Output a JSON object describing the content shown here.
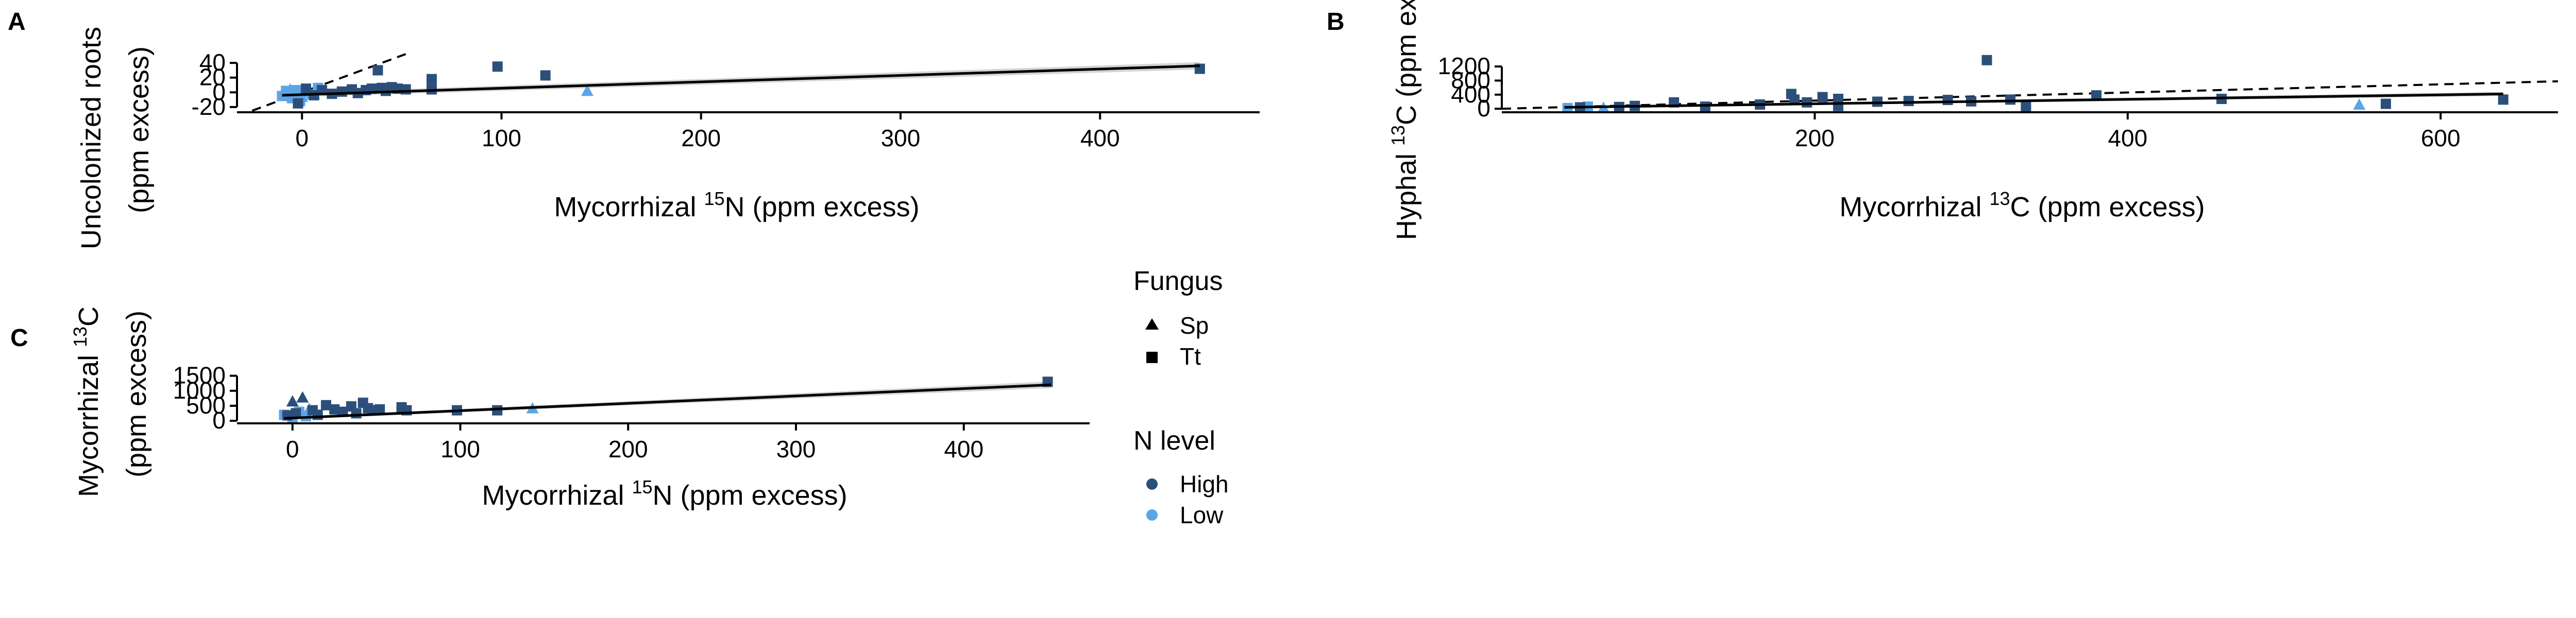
{
  "colors": {
    "high": "#2b4f7a",
    "low": "#5aa5e6",
    "band": "#bdbdbd"
  },
  "legend": {
    "fungus_title": "Fungus",
    "fungus_items": [
      {
        "label": "Sp",
        "shape": "triangle"
      },
      {
        "label": "Tt",
        "shape": "square"
      }
    ],
    "n_title": "N level",
    "n_items": [
      {
        "label": "High",
        "color": "#2b4f7a"
      },
      {
        "label": "Low",
        "color": "#5aa5e6"
      }
    ]
  },
  "chart_data": [
    {
      "panel": "A",
      "type": "scatter",
      "xlabel_main": "Mycorrhizal ",
      "xlabel_sup": "15",
      "xlabel_rest": "N (ppm excess)",
      "ylabel_line1": "Uncolonized roots",
      "ylabel_line1_sup": "",
      "ylabel_line1_rest": "",
      "ylabel_line2": "(ppm excess)",
      "xlim": [
        -30,
        480
      ],
      "ylim": [
        -25,
        45
      ],
      "xticks": [
        "0",
        "100",
        "200",
        "300",
        "400"
      ],
      "xtick_values": [
        0,
        100,
        200,
        300,
        400
      ],
      "yticks": [
        "-20",
        "0",
        "20",
        "40"
      ],
      "ytick_values": [
        -20,
        0,
        20,
        40
      ],
      "fit": {
        "x": [
          -10,
          450
        ],
        "y": [
          -4,
          36
        ],
        "band": [
          3,
          5
        ]
      },
      "ref_line": {
        "x": [
          -25,
          52
        ],
        "y": [
          -25,
          52
        ]
      },
      "points": [
        {
          "x": -10,
          "y": -5,
          "f": "Tt",
          "n": "low"
        },
        {
          "x": -8,
          "y": 2,
          "f": "Tt",
          "n": "low"
        },
        {
          "x": -5,
          "y": -8,
          "f": "Tt",
          "n": "low"
        },
        {
          "x": -3,
          "y": 3,
          "f": "Tt",
          "n": "low"
        },
        {
          "x": -1,
          "y": -12,
          "f": "Tt",
          "n": "low"
        },
        {
          "x": 2,
          "y": 0,
          "f": "Tt",
          "n": "low"
        },
        {
          "x": 5,
          "y": -3,
          "f": "Tt",
          "n": "low"
        },
        {
          "x": 8,
          "y": 6,
          "f": "Tt",
          "n": "low"
        },
        {
          "x": -6,
          "y": 4,
          "f": "Sp",
          "n": "low"
        },
        {
          "x": 0,
          "y": -6,
          "f": "Sp",
          "n": "low"
        },
        {
          "x": 3,
          "y": 2,
          "f": "Sp",
          "n": "low"
        },
        {
          "x": 6,
          "y": -2,
          "f": "Sp",
          "n": "low"
        },
        {
          "x": 143,
          "y": 2,
          "f": "Sp",
          "n": "low"
        },
        {
          "x": -2,
          "y": -15,
          "f": "Tt",
          "n": "high"
        },
        {
          "x": 2,
          "y": 5,
          "f": "Tt",
          "n": "high"
        },
        {
          "x": 6,
          "y": -4,
          "f": "Tt",
          "n": "high"
        },
        {
          "x": 10,
          "y": 3,
          "f": "Tt",
          "n": "high"
        },
        {
          "x": 15,
          "y": -2,
          "f": "Tt",
          "n": "high"
        },
        {
          "x": 20,
          "y": 1,
          "f": "Tt",
          "n": "high"
        },
        {
          "x": 25,
          "y": 4,
          "f": "Tt",
          "n": "high"
        },
        {
          "x": 28,
          "y": -1,
          "f": "Tt",
          "n": "high"
        },
        {
          "x": 32,
          "y": 3,
          "f": "Tt",
          "n": "high"
        },
        {
          "x": 35,
          "y": 5,
          "f": "Tt",
          "n": "high"
        },
        {
          "x": 38,
          "y": 30,
          "f": "Tt",
          "n": "high"
        },
        {
          "x": 40,
          "y": 6,
          "f": "Tt",
          "n": "high"
        },
        {
          "x": 42,
          "y": 2,
          "f": "Tt",
          "n": "high"
        },
        {
          "x": 45,
          "y": 7,
          "f": "Tt",
          "n": "high"
        },
        {
          "x": 48,
          "y": 5,
          "f": "Tt",
          "n": "high"
        },
        {
          "x": 52,
          "y": 4,
          "f": "Tt",
          "n": "high"
        },
        {
          "x": 65,
          "y": 18,
          "f": "Tt",
          "n": "high"
        },
        {
          "x": 65,
          "y": 4,
          "f": "Tt",
          "n": "high"
        },
        {
          "x": 98,
          "y": 35,
          "f": "Tt",
          "n": "high"
        },
        {
          "x": 122,
          "y": 23,
          "f": "Tt",
          "n": "high"
        },
        {
          "x": 450,
          "y": 32,
          "f": "Tt",
          "n": "high"
        }
      ]
    },
    {
      "panel": "B",
      "type": "scatter",
      "xlabel_main": "Mycorrhizal ",
      "xlabel_sup": "13",
      "xlabel_rest": "C (ppm excess)",
      "ylabel_line1": "Hyphal ",
      "ylabel_line1_sup": "13",
      "ylabel_line1_rest": "C (ppm ex",
      "ylabel_line2": "",
      "xlim": [
        0,
        675
      ],
      "ylim": [
        -100,
        1450
      ],
      "xticks": [
        "200",
        "400",
        "600"
      ],
      "xtick_values": [
        200,
        400,
        600
      ],
      "yticks": [
        "0",
        "400",
        "800",
        "1200"
      ],
      "ytick_values": [
        0,
        400,
        800,
        1200
      ],
      "fit": {
        "x": [
          40,
          640
        ],
        "y": [
          40,
          420
        ],
        "band": [
          25,
          60
        ]
      },
      "ref_line": {
        "x": [
          0,
          675
        ],
        "y": [
          0,
          780
        ]
      },
      "points": [
        {
          "x": 42,
          "y": 20,
          "f": "Tt",
          "n": "low"
        },
        {
          "x": 55,
          "y": 60,
          "f": "Tt",
          "n": "low"
        },
        {
          "x": 65,
          "y": 30,
          "f": "Sp",
          "n": "low"
        },
        {
          "x": 548,
          "y": 120,
          "f": "Sp",
          "n": "low"
        },
        {
          "x": 50,
          "y": 40,
          "f": "Tt",
          "n": "high"
        },
        {
          "x": 75,
          "y": 50,
          "f": "Tt",
          "n": "high"
        },
        {
          "x": 85,
          "y": 80,
          "f": "Tt",
          "n": "high"
        },
        {
          "x": 110,
          "y": 180,
          "f": "Tt",
          "n": "high"
        },
        {
          "x": 130,
          "y": 60,
          "f": "Tt",
          "n": "high"
        },
        {
          "x": 165,
          "y": 120,
          "f": "Tt",
          "n": "high"
        },
        {
          "x": 185,
          "y": 420,
          "f": "Tt",
          "n": "high"
        },
        {
          "x": 187,
          "y": 260,
          "f": "Tt",
          "n": "high"
        },
        {
          "x": 195,
          "y": 180,
          "f": "Tt",
          "n": "high"
        },
        {
          "x": 205,
          "y": 330,
          "f": "Tt",
          "n": "high"
        },
        {
          "x": 215,
          "y": 280,
          "f": "Tt",
          "n": "high"
        },
        {
          "x": 215,
          "y": 80,
          "f": "Tt",
          "n": "high"
        },
        {
          "x": 240,
          "y": 200,
          "f": "Tt",
          "n": "high"
        },
        {
          "x": 260,
          "y": 220,
          "f": "Tt",
          "n": "high"
        },
        {
          "x": 285,
          "y": 250,
          "f": "Tt",
          "n": "high"
        },
        {
          "x": 300,
          "y": 210,
          "f": "Tt",
          "n": "high"
        },
        {
          "x": 310,
          "y": 1380,
          "f": "Tt",
          "n": "high"
        },
        {
          "x": 325,
          "y": 260,
          "f": "Tt",
          "n": "high"
        },
        {
          "x": 335,
          "y": 60,
          "f": "Tt",
          "n": "high"
        },
        {
          "x": 380,
          "y": 380,
          "f": "Tt",
          "n": "high"
        },
        {
          "x": 460,
          "y": 280,
          "f": "Tt",
          "n": "high"
        },
        {
          "x": 565,
          "y": 140,
          "f": "Tt",
          "n": "high"
        },
        {
          "x": 640,
          "y": 260,
          "f": "Tt",
          "n": "high"
        }
      ]
    },
    {
      "panel": "C",
      "type": "scatter",
      "xlabel_main": "Mycorrhizal ",
      "xlabel_sup": "15",
      "xlabel_rest": "N (ppm excess)",
      "ylabel_line1": "Mycorrhizal ",
      "ylabel_line1_sup": "13",
      "ylabel_line1_rest": "C",
      "ylabel_line2": "(ppm excess)",
      "xlim": [
        -30,
        475
      ],
      "ylim": [
        -50,
        1700
      ],
      "xticks": [
        "0",
        "100",
        "200",
        "300",
        "400"
      ],
      "xtick_values": [
        0,
        100,
        200,
        300,
        400
      ],
      "yticks": [
        "0",
        "500",
        "1000",
        "1500"
      ],
      "ytick_values": [
        0,
        500,
        1000,
        1500
      ],
      "fit": {
        "x": [
          -5,
          452
        ],
        "y": [
          80,
          1200
        ],
        "band": [
          40,
          110
        ]
      },
      "ref_line": null,
      "points": [
        {
          "x": -5,
          "y": 200,
          "f": "Tt",
          "n": "low"
        },
        {
          "x": 0,
          "y": 100,
          "f": "Tt",
          "n": "low"
        },
        {
          "x": 4,
          "y": 300,
          "f": "Tt",
          "n": "low"
        },
        {
          "x": 8,
          "y": 150,
          "f": "Tt",
          "n": "low"
        },
        {
          "x": 10,
          "y": 400,
          "f": "Sp",
          "n": "low"
        },
        {
          "x": 143,
          "y": 420,
          "f": "Sp",
          "n": "low"
        },
        {
          "x": 0,
          "y": 650,
          "f": "Sp",
          "n": "high"
        },
        {
          "x": 6,
          "y": 780,
          "f": "Sp",
          "n": "high"
        },
        {
          "x": -3,
          "y": 180,
          "f": "Tt",
          "n": "high"
        },
        {
          "x": 2,
          "y": 250,
          "f": "Tt",
          "n": "high"
        },
        {
          "x": 12,
          "y": 350,
          "f": "Tt",
          "n": "high"
        },
        {
          "x": 15,
          "y": 200,
          "f": "Tt",
          "n": "high"
        },
        {
          "x": 20,
          "y": 520,
          "f": "Tt",
          "n": "high"
        },
        {
          "x": 25,
          "y": 380,
          "f": "Tt",
          "n": "high"
        },
        {
          "x": 30,
          "y": 300,
          "f": "Tt",
          "n": "high"
        },
        {
          "x": 35,
          "y": 480,
          "f": "Tt",
          "n": "high"
        },
        {
          "x": 38,
          "y": 250,
          "f": "Tt",
          "n": "high"
        },
        {
          "x": 42,
          "y": 600,
          "f": "Tt",
          "n": "high"
        },
        {
          "x": 45,
          "y": 420,
          "f": "Tt",
          "n": "high"
        },
        {
          "x": 48,
          "y": 350,
          "f": "Tt",
          "n": "high"
        },
        {
          "x": 52,
          "y": 380,
          "f": "Tt",
          "n": "high"
        },
        {
          "x": 65,
          "y": 450,
          "f": "Tt",
          "n": "high"
        },
        {
          "x": 68,
          "y": 350,
          "f": "Tt",
          "n": "high"
        },
        {
          "x": 98,
          "y": 350,
          "f": "Tt",
          "n": "high"
        },
        {
          "x": 122,
          "y": 350,
          "f": "Tt",
          "n": "high"
        },
        {
          "x": 450,
          "y": 1300,
          "f": "Tt",
          "n": "high"
        }
      ]
    }
  ]
}
